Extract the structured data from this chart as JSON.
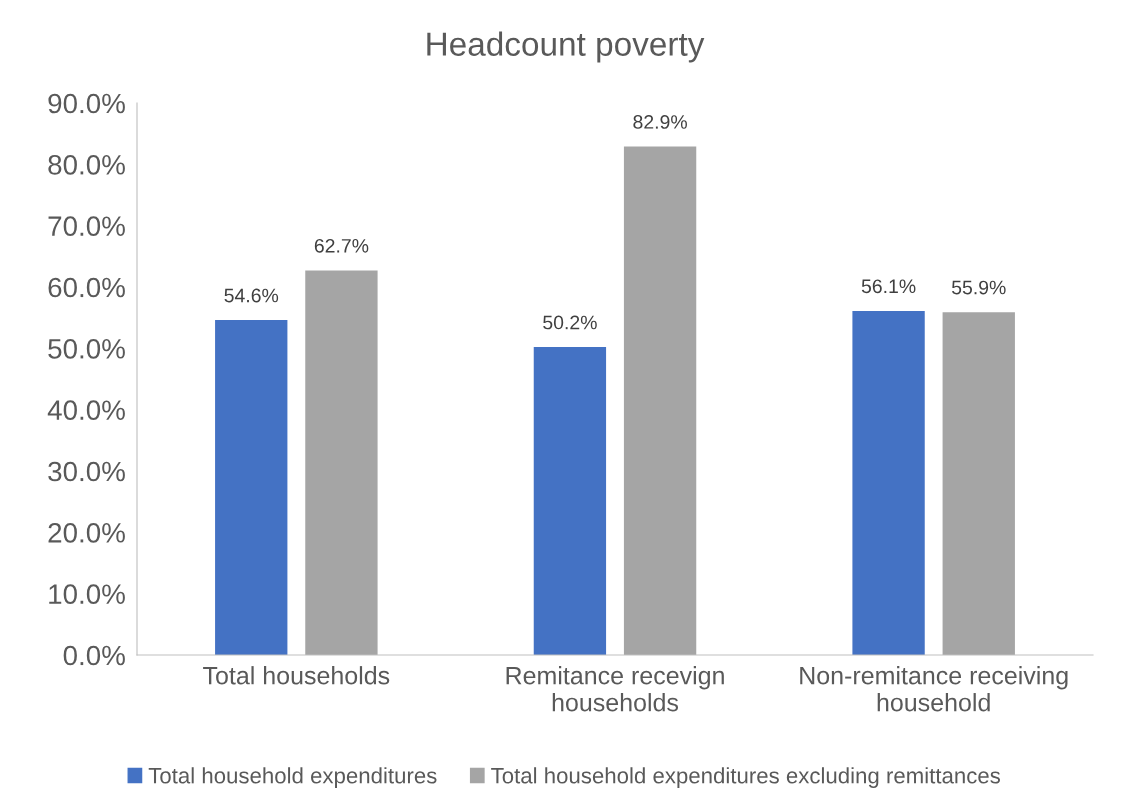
{
  "chart_data": {
    "type": "bar",
    "title": "Headcount poverty",
    "categories": [
      "Total households",
      "Remitance recevign\nhouseholds",
      "Non-remitance receiving\nhousehold"
    ],
    "series": [
      {
        "name": "Total household expenditures",
        "color": "#4472c4",
        "values": [
          54.6,
          50.2,
          56.1
        ],
        "value_labels": [
          "54.6%",
          "50.2%",
          "56.1%"
        ]
      },
      {
        "name": "Total household expenditures excluding remittances",
        "color": "#a5a5a5",
        "values": [
          62.7,
          82.9,
          55.9
        ],
        "value_labels": [
          "62.7%",
          "82.9%",
          "55.9%"
        ]
      }
    ],
    "ylim": [
      0,
      90
    ],
    "yticks": [
      {
        "value": 0,
        "label": "0.0%"
      },
      {
        "value": 10,
        "label": "10.0%"
      },
      {
        "value": 20,
        "label": "20.0%"
      },
      {
        "value": 30,
        "label": "30.0%"
      },
      {
        "value": 40,
        "label": "40.0%"
      },
      {
        "value": 50,
        "label": "50.0%"
      },
      {
        "value": 60,
        "label": "60.0%"
      },
      {
        "value": 70,
        "label": "70.0%"
      },
      {
        "value": 80,
        "label": "80.0%"
      },
      {
        "value": 90,
        "label": "90.0%"
      }
    ],
    "grid": false,
    "legend": "bottom"
  }
}
